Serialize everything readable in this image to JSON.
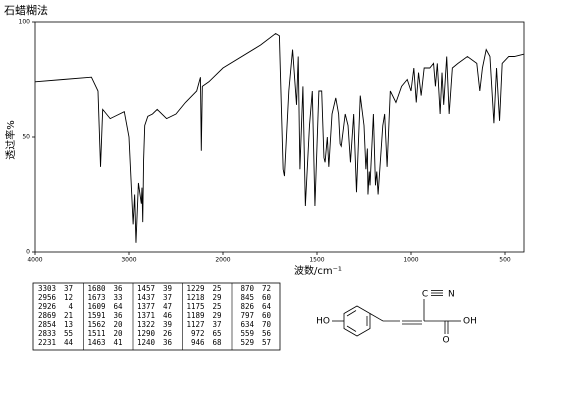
{
  "chart_data": {
    "type": "line",
    "title": "石蜡糊法",
    "x_label": "波数/cm⁻¹",
    "y_label": "透过率%",
    "xlim": [
      4000,
      400
    ],
    "xticks": [
      4000,
      3000,
      2000,
      1500,
      1000,
      500
    ],
    "ylim": [
      0,
      100
    ],
    "yticks": [
      0,
      50,
      100
    ],
    "color": "#000000",
    "x": [
      4000,
      3700,
      3400,
      3330,
      3303,
      3280,
      3200,
      3100,
      3050,
      3000,
      2956,
      2940,
      2926,
      2900,
      2869,
      2862,
      2854,
      2845,
      2833,
      2800,
      2750,
      2700,
      2600,
      2500,
      2400,
      2280,
      2240,
      2231,
      2220,
      2150,
      2000,
      1800,
      1720,
      1700,
      1680,
      1673,
      1650,
      1630,
      1609,
      1600,
      1591,
      1575,
      1562,
      1540,
      1525,
      1511,
      1490,
      1475,
      1463,
      1457,
      1445,
      1437,
      1420,
      1400,
      1385,
      1377,
      1371,
      1350,
      1335,
      1322,
      1305,
      1290,
      1270,
      1250,
      1240,
      1232,
      1229,
      1222,
      1218,
      1200,
      1189,
      1182,
      1175,
      1150,
      1140,
      1127,
      1110,
      1080,
      1050,
      1020,
      1000,
      985,
      972,
      960,
      946,
      930,
      900,
      880,
      870,
      860,
      845,
      835,
      826,
      810,
      797,
      780,
      750,
      700,
      650,
      634,
      620,
      600,
      580,
      559,
      545,
      529,
      515,
      480,
      450,
      400
    ],
    "values": [
      74,
      75,
      76,
      70,
      37,
      62,
      58,
      60,
      61,
      50,
      12,
      25,
      4,
      30,
      21,
      28,
      13,
      40,
      55,
      59,
      60,
      62,
      58,
      60,
      65,
      70,
      76,
      44,
      72,
      74,
      80,
      90,
      95,
      94,
      36,
      33,
      70,
      88,
      64,
      85,
      36,
      72,
      20,
      55,
      70,
      20,
      70,
      70,
      41,
      39,
      50,
      37,
      60,
      67,
      60,
      47,
      46,
      60,
      55,
      39,
      60,
      26,
      68,
      55,
      36,
      45,
      25,
      35,
      29,
      60,
      29,
      35,
      25,
      55,
      60,
      37,
      70,
      65,
      72,
      75,
      70,
      80,
      65,
      78,
      68,
      80,
      80,
      82,
      72,
      82,
      60,
      78,
      64,
      85,
      60,
      80,
      82,
      85,
      82,
      70,
      80,
      88,
      85,
      56,
      80,
      57,
      82,
      85,
      85,
      86
    ]
  },
  "peak_table": {
    "columns": [
      [
        [
          3303,
          37
        ],
        [
          2956,
          12
        ],
        [
          2926,
          4
        ],
        [
          2869,
          21
        ],
        [
          2854,
          13
        ],
        [
          2833,
          55
        ],
        [
          2231,
          44
        ]
      ],
      [
        [
          1680,
          36
        ],
        [
          1673,
          33
        ],
        [
          1609,
          64
        ],
        [
          1591,
          36
        ],
        [
          1562,
          20
        ],
        [
          1511,
          20
        ],
        [
          1463,
          41
        ]
      ],
      [
        [
          1457,
          39
        ],
        [
          1437,
          37
        ],
        [
          1377,
          47
        ],
        [
          1371,
          46
        ],
        [
          1322,
          39
        ],
        [
          1290,
          26
        ],
        [
          1240,
          36
        ]
      ],
      [
        [
          1229,
          25
        ],
        [
          1218,
          29
        ],
        [
          1175,
          25
        ],
        [
          1189,
          29
        ],
        [
          1127,
          37
        ],
        [
          972,
          65
        ],
        [
          946,
          68
        ]
      ],
      [
        [
          870,
          72
        ],
        [
          845,
          60
        ],
        [
          826,
          64
        ],
        [
          797,
          60
        ],
        [
          634,
          70
        ],
        [
          559,
          56
        ],
        [
          529,
          57
        ]
      ]
    ]
  },
  "structure": {
    "labels": [
      "HO",
      "C",
      "N",
      "OH",
      "O"
    ]
  }
}
